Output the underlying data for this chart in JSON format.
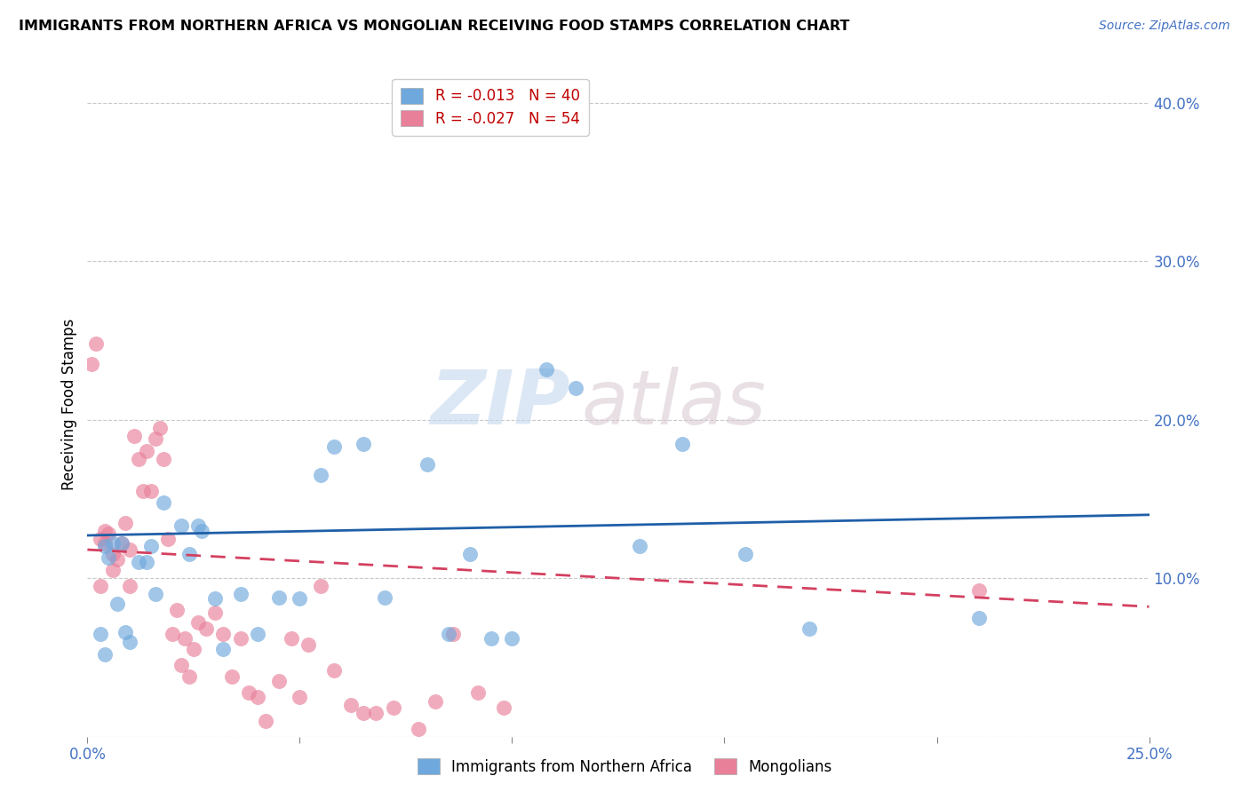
{
  "title": "IMMIGRANTS FROM NORTHERN AFRICA VS MONGOLIAN RECEIVING FOOD STAMPS CORRELATION CHART",
  "source": "Source: ZipAtlas.com",
  "ylabel": "Receiving Food Stamps",
  "xlim": [
    0.0,
    0.25
  ],
  "ylim": [
    0.0,
    0.42
  ],
  "yticks": [
    0.0,
    0.1,
    0.2,
    0.3,
    0.4
  ],
  "ytick_labels_right": [
    "",
    "10.0%",
    "20.0%",
    "30.0%",
    "40.0%"
  ],
  "xticks": [
    0.0,
    0.05,
    0.1,
    0.15,
    0.2,
    0.25
  ],
  "xtick_labels": [
    "0.0%",
    "",
    "",
    "",
    "",
    "25.0%"
  ],
  "blue_R": -0.013,
  "blue_N": 40,
  "pink_R": -0.027,
  "pink_N": 54,
  "blue_color": "#6fa8dc",
  "pink_color": "#e8809a",
  "trend_blue_color": "#1f5fa8",
  "trend_pink_color": "#d44060",
  "watermark_zip": "ZIP",
  "watermark_atlas": "atlas",
  "legend_label_blue": "Immigrants from Northern Africa",
  "legend_label_pink": "Mongolians",
  "blue_x": [
    0.003,
    0.004,
    0.004,
    0.005,
    0.006,
    0.007,
    0.008,
    0.009,
    0.01,
    0.012,
    0.014,
    0.015,
    0.016,
    0.018,
    0.022,
    0.024,
    0.026,
    0.027,
    0.03,
    0.032,
    0.036,
    0.04,
    0.045,
    0.05,
    0.055,
    0.058,
    0.065,
    0.07,
    0.08,
    0.085,
    0.09,
    0.095,
    0.1,
    0.108,
    0.115,
    0.13,
    0.14,
    0.155,
    0.17,
    0.21
  ],
  "blue_y": [
    0.065,
    0.12,
    0.052,
    0.113,
    0.122,
    0.084,
    0.122,
    0.066,
    0.06,
    0.11,
    0.11,
    0.12,
    0.09,
    0.148,
    0.133,
    0.115,
    0.133,
    0.13,
    0.087,
    0.055,
    0.09,
    0.065,
    0.088,
    0.087,
    0.165,
    0.183,
    0.185,
    0.088,
    0.172,
    0.065,
    0.115,
    0.062,
    0.062,
    0.232,
    0.22,
    0.12,
    0.185,
    0.115,
    0.068,
    0.075
  ],
  "pink_x": [
    0.001,
    0.002,
    0.003,
    0.003,
    0.004,
    0.004,
    0.005,
    0.006,
    0.006,
    0.007,
    0.008,
    0.009,
    0.01,
    0.01,
    0.011,
    0.012,
    0.013,
    0.014,
    0.015,
    0.016,
    0.017,
    0.018,
    0.019,
    0.02,
    0.021,
    0.022,
    0.023,
    0.024,
    0.025,
    0.026,
    0.028,
    0.03,
    0.032,
    0.034,
    0.036,
    0.038,
    0.04,
    0.042,
    0.045,
    0.048,
    0.05,
    0.052,
    0.055,
    0.058,
    0.062,
    0.065,
    0.068,
    0.072,
    0.078,
    0.082,
    0.086,
    0.092,
    0.098,
    0.21
  ],
  "pink_y": [
    0.235,
    0.248,
    0.125,
    0.095,
    0.122,
    0.13,
    0.128,
    0.115,
    0.105,
    0.112,
    0.122,
    0.135,
    0.118,
    0.095,
    0.19,
    0.175,
    0.155,
    0.18,
    0.155,
    0.188,
    0.195,
    0.175,
    0.125,
    0.065,
    0.08,
    0.045,
    0.062,
    0.038,
    0.055,
    0.072,
    0.068,
    0.078,
    0.065,
    0.038,
    0.062,
    0.028,
    0.025,
    0.01,
    0.035,
    0.062,
    0.025,
    0.058,
    0.095,
    0.042,
    0.02,
    0.015,
    0.015,
    0.018,
    0.005,
    0.022,
    0.065,
    0.028,
    0.018,
    0.092
  ],
  "blue_trend_x": [
    0.0,
    0.25
  ],
  "blue_trend_y": [
    0.127,
    0.14
  ],
  "pink_trend_x": [
    0.0,
    0.25
  ],
  "pink_trend_y": [
    0.118,
    0.082
  ]
}
